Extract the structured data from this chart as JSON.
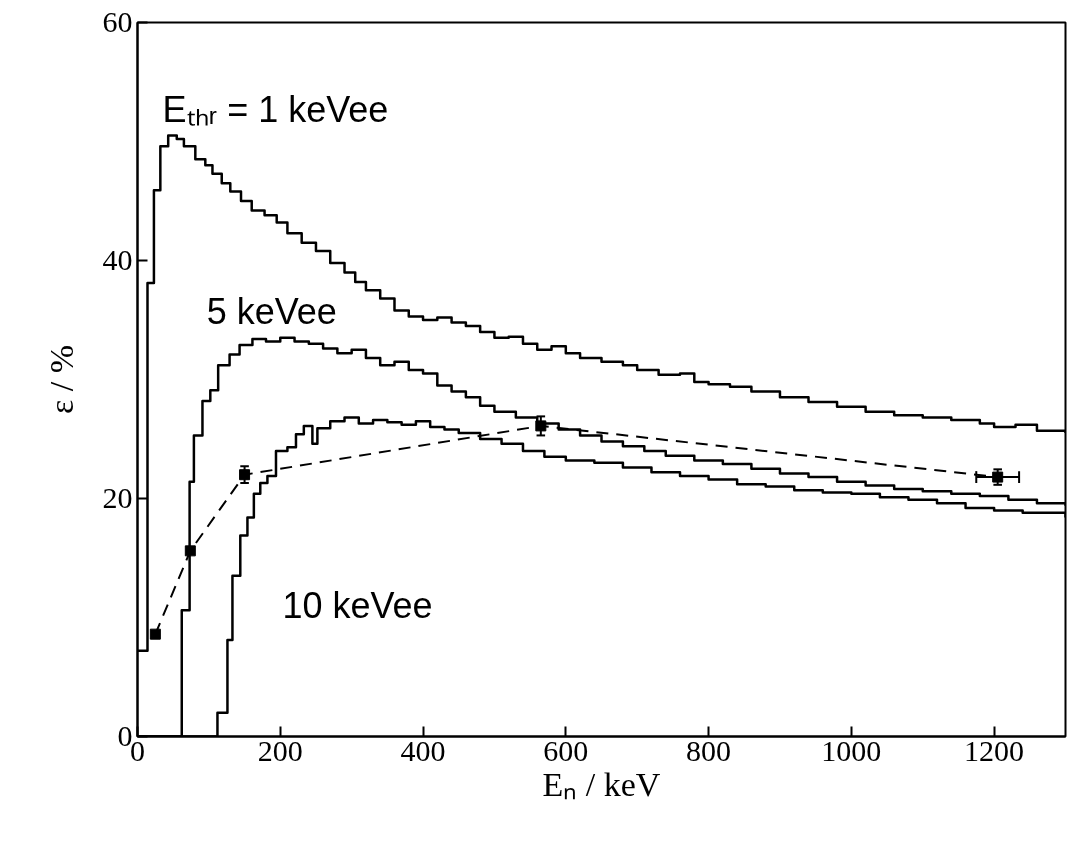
{
  "chart_data": {
    "type": "step",
    "xlabel": "Eₙ / keV",
    "ylabel": "ε / %",
    "xlim": [
      0,
      1300
    ],
    "xticks": [
      0,
      200,
      400,
      600,
      800,
      1000,
      1200
    ],
    "ylim": [
      0,
      60
    ],
    "yticks": [
      0,
      20,
      40,
      60
    ],
    "grid": false,
    "series": [
      {
        "name": "Eₜₕᵣ = 1 keVee",
        "color": "#000000",
        "x": [
          0,
          14,
          23,
          32,
          43,
          55,
          65,
          81,
          95,
          105,
          118,
          130,
          145,
          160,
          178,
          195,
          210,
          230,
          250,
          270,
          290,
          305,
          320,
          340,
          360,
          380,
          400,
          420,
          440,
          460,
          480,
          500,
          520,
          540,
          560,
          580,
          600,
          620,
          650,
          680,
          700,
          730,
          760,
          780,
          800,
          830,
          860,
          900,
          940,
          980,
          1020,
          1060,
          1100,
          1140,
          1180,
          1200,
          1230,
          1260,
          1300
        ],
        "values": [
          7.2,
          38.1,
          45.9,
          49.6,
          50.5,
          50.2,
          49.6,
          48.5,
          48.0,
          47.3,
          46.5,
          45.8,
          45.0,
          44.2,
          43.8,
          43.2,
          42.3,
          41.5,
          40.8,
          39.8,
          39.0,
          38.2,
          37.5,
          36.8,
          35.8,
          35.3,
          35.0,
          35.2,
          34.8,
          34.5,
          34.0,
          33.5,
          33.6,
          33.0,
          32.5,
          32.8,
          32.2,
          31.8,
          31.5,
          31.2,
          30.8,
          30.4,
          30.5,
          29.8,
          29.6,
          29.4,
          29.0,
          28.5,
          28.1,
          27.7,
          27.3,
          27.0,
          26.8,
          26.6,
          26.3,
          26.0,
          26.2,
          25.7,
          25.5
        ]
      },
      {
        "name": "5 keVee",
        "color": "#000000",
        "x": [
          0,
          62,
          73,
          79,
          91,
          102,
          113,
          129,
          143,
          161,
          180,
          200,
          220,
          240,
          260,
          280,
          300,
          320,
          340,
          360,
          380,
          400,
          420,
          440,
          460,
          480,
          500,
          530,
          560,
          590,
          620,
          650,
          680,
          710,
          740,
          780,
          820,
          860,
          900,
          940,
          980,
          1020,
          1060,
          1100,
          1140,
          1180,
          1220,
          1260,
          1300
        ],
        "values": [
          0,
          10.6,
          21.4,
          25.3,
          28.2,
          29.1,
          31.2,
          32.1,
          32.9,
          33.4,
          33.2,
          33.5,
          33.2,
          33.0,
          32.6,
          32.2,
          32.5,
          31.8,
          31.2,
          31.5,
          30.8,
          30.5,
          29.5,
          29.0,
          28.5,
          27.8,
          27.3,
          26.8,
          26.3,
          25.8,
          25.3,
          24.8,
          24.4,
          24.0,
          23.6,
          23.2,
          22.9,
          22.5,
          22.1,
          21.8,
          21.4,
          21.1,
          20.8,
          20.6,
          20.4,
          20.2,
          19.9,
          19.6,
          19.4
        ]
      },
      {
        "name": "10 keVee",
        "color": "#000000",
        "x": [
          0,
          112,
          126,
          133,
          144,
          154,
          163,
          172,
          182,
          194,
          210,
          222,
          233,
          245,
          252,
          270,
          290,
          310,
          330,
          350,
          370,
          390,
          410,
          430,
          450,
          480,
          510,
          540,
          570,
          600,
          640,
          680,
          720,
          760,
          800,
          840,
          880,
          920,
          960,
          1000,
          1040,
          1080,
          1120,
          1160,
          1200,
          1240,
          1300
        ],
        "values": [
          0,
          2.0,
          8.1,
          13.5,
          16.9,
          18.4,
          20.4,
          21.3,
          21.9,
          24.0,
          24.3,
          25.4,
          26.1,
          24.6,
          25.9,
          26.5,
          26.8,
          26.3,
          26.6,
          26.4,
          26.2,
          26.5,
          26.0,
          25.8,
          25.5,
          25.0,
          24.6,
          24.0,
          23.5,
          23.2,
          23.0,
          22.6,
          22.2,
          21.9,
          21.6,
          21.2,
          21.0,
          20.7,
          20.5,
          20.4,
          20.1,
          19.9,
          19.6,
          19.2,
          19.0,
          18.8,
          18.4
        ]
      },
      {
        "type": "line",
        "color": "#000000",
        "line_style": "dashed",
        "marker": "square",
        "x": [
          25,
          74,
          150,
          565,
          1205
        ],
        "values": [
          8.6,
          15.6,
          22.0,
          26.1,
          21.8
        ],
        "errors": [
          null,
          null,
          0.7,
          0.8,
          0.65
        ],
        "xerrors": [
          null,
          null,
          null,
          null,
          30
        ]
      }
    ]
  }
}
